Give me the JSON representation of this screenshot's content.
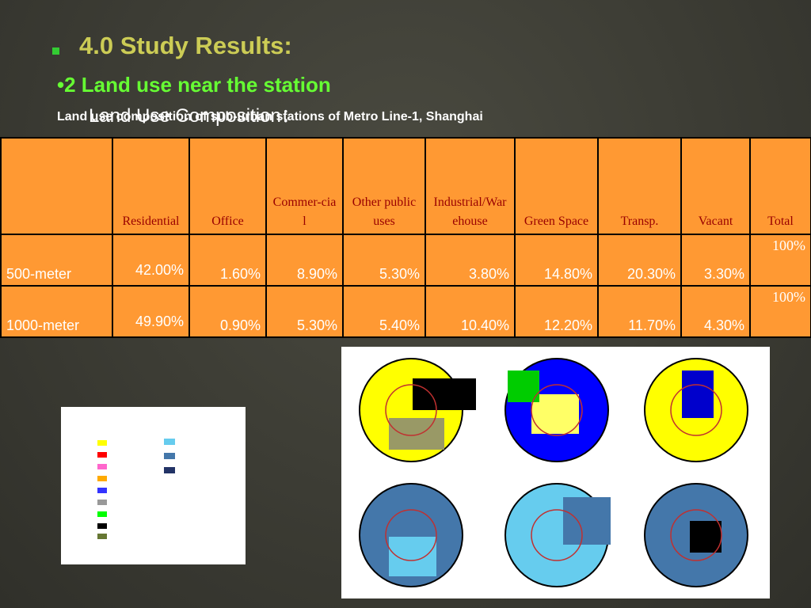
{
  "header": {
    "title": "4.0 Study Results:",
    "subtitle": "•2  Land use near the station",
    "overlay": "Land Use Composition：",
    "caption": "Land use composition of sub-urban stations of Metro Line-1, Shanghai"
  },
  "table": {
    "columns": [
      "",
      "Residential",
      "Office",
      "Commer-cial",
      "Other public uses",
      "Industrial/Warehouse",
      "Green Space",
      "Transp.",
      "Vacant",
      "Total"
    ],
    "rows": [
      [
        "500-meter",
        "42.00%",
        "1.60%",
        "8.90%",
        "5.30%",
        "3.80%",
        "14.80%",
        "20.30%",
        "3.30%",
        "100%"
      ],
      [
        "1000-meter",
        "49.90%",
        "0.90%",
        "5.30%",
        "5.40%",
        "10.40%",
        "12.20%",
        "11.70%",
        "4.30%",
        "100%"
      ]
    ]
  }
}
